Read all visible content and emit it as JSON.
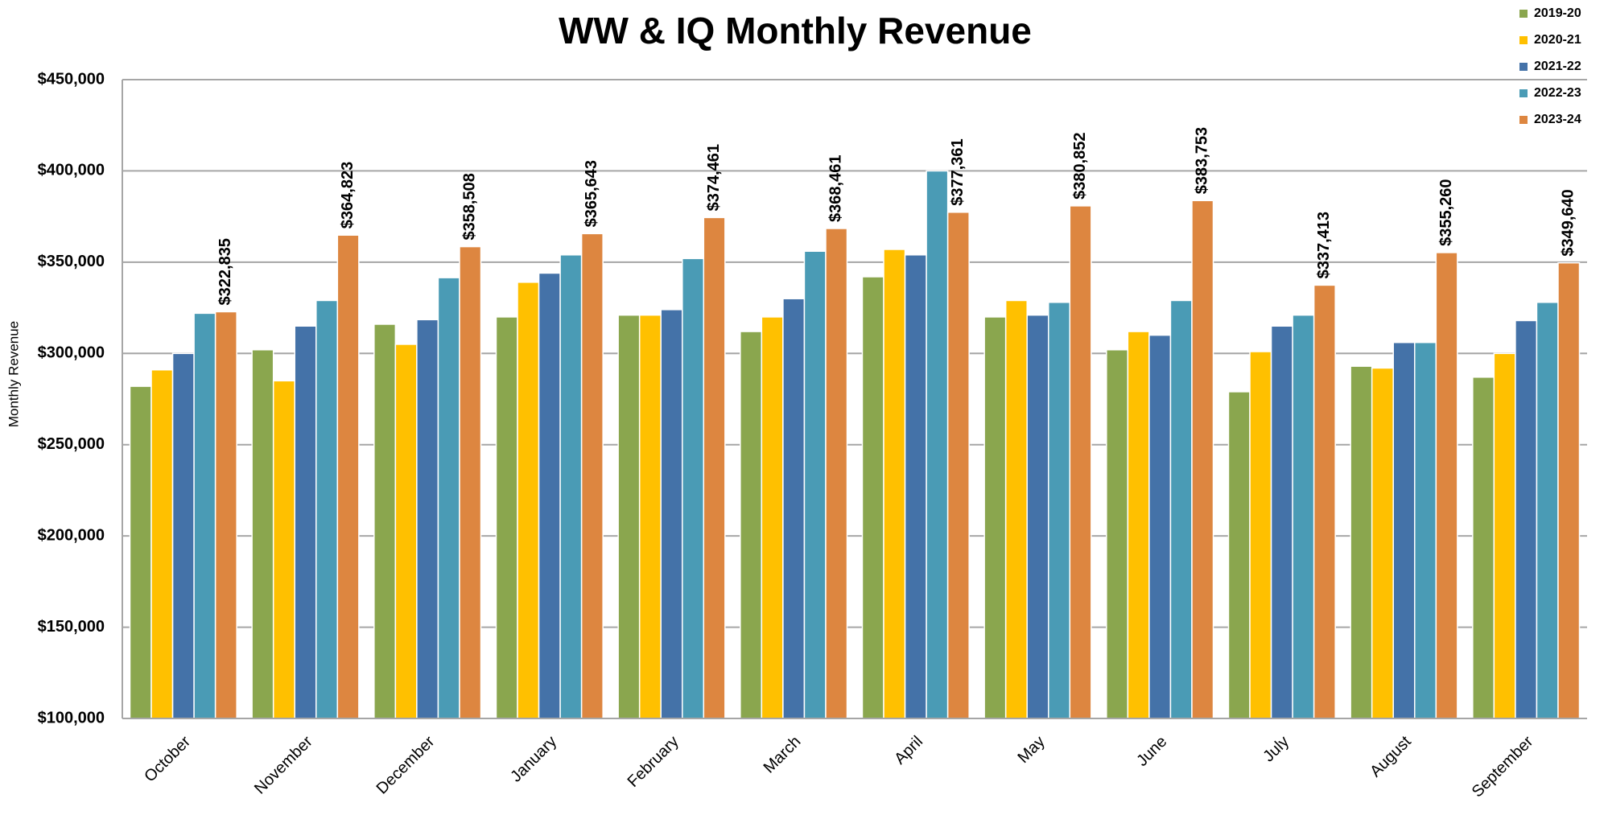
{
  "chart_data": {
    "type": "bar",
    "title": "WW & IQ Monthly Revenue",
    "y_label": "Monthly Revenue",
    "categories": [
      "October",
      "November",
      "December",
      "January",
      "February",
      "March",
      "April",
      "May",
      "June",
      "July",
      "August",
      "September"
    ],
    "series": [
      {
        "name": "2019-20",
        "color": "#8aa64e",
        "values": [
          282000,
          302000,
          316000,
          320000,
          321000,
          312000,
          342000,
          320000,
          302000,
          279000,
          293000,
          287000
        ]
      },
      {
        "name": "2020-21",
        "color": "#ffc000",
        "values": [
          291000,
          285000,
          305000,
          339000,
          321000,
          320000,
          357000,
          329000,
          312000,
          301000,
          292000,
          300000
        ]
      },
      {
        "name": "2021-22",
        "color": "#4472a8",
        "values": [
          300000,
          315000,
          318500,
          344000,
          324000,
          330000,
          354000,
          321000,
          310000,
          315000,
          306000,
          318000
        ]
      },
      {
        "name": "2022-23",
        "color": "#4a9bb5",
        "values": [
          322000,
          329000,
          341500,
          354000,
          352000,
          356000,
          400000,
          328000,
          329000,
          321000,
          306000,
          328000
        ]
      },
      {
        "name": "2023-24",
        "color": "#dd8640",
        "values": [
          322835,
          364823,
          358508,
          365643,
          374461,
          368461,
          377361,
          380852,
          383753,
          337413,
          355260,
          349640
        ],
        "value_labels": [
          "$322,835",
          "$364,823",
          "$358,508",
          "$365,643",
          "$374,461",
          "$368,461",
          "$377,361",
          "$380,852",
          "$383,753",
          "$337,413",
          "$355,260",
          "$349,640"
        ]
      }
    ],
    "ylim": [
      100000,
      450000
    ],
    "yticks": [
      {
        "value": 100000,
        "label": "$100,000"
      },
      {
        "value": 150000,
        "label": "$150,000"
      },
      {
        "value": 200000,
        "label": "$200,000"
      },
      {
        "value": 250000,
        "label": "$250,000"
      },
      {
        "value": 300000,
        "label": "$300,000"
      },
      {
        "value": 350000,
        "label": "$350,000"
      },
      {
        "value": 400000,
        "label": "$400,000"
      },
      {
        "value": 450000,
        "label": "$450,000"
      }
    ],
    "grid": true,
    "legend": "upper right"
  }
}
